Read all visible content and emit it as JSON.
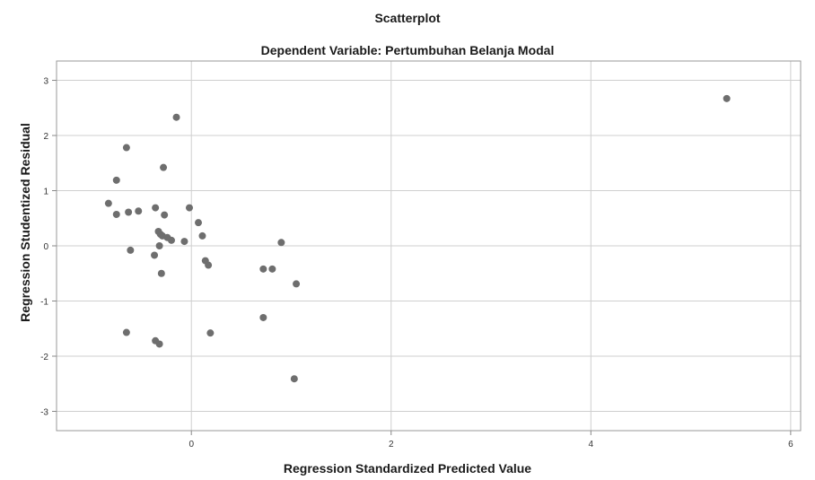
{
  "chart_data": {
    "type": "scatter",
    "title": "Scatterplot",
    "subtitle": "Dependent Variable: Pertumbuhan Belanja Modal",
    "xlabel": "Regression Standardized Predicted Value",
    "ylabel": "Regression Studentized Residual",
    "xlim": [
      -1.35,
      6.1
    ],
    "ylim": [
      -3.35,
      3.35
    ],
    "xticks": [
      0,
      2,
      4,
      6
    ],
    "yticks": [
      -3,
      -2,
      -1,
      0,
      1,
      2,
      3
    ],
    "grid": true,
    "point_color": "#6e6e6e",
    "grid_color": "#cfcfcf",
    "points": [
      [
        -0.83,
        0.77
      ],
      [
        -0.75,
        1.19
      ],
      [
        -0.75,
        0.57
      ],
      [
        -0.65,
        1.78
      ],
      [
        -0.63,
        0.61
      ],
      [
        -0.61,
        -0.08
      ],
      [
        -0.53,
        0.63
      ],
      [
        -0.65,
        -1.57
      ],
      [
        -0.36,
        0.69
      ],
      [
        -0.33,
        0.26
      ],
      [
        -0.31,
        0.21
      ],
      [
        -0.29,
        0.18
      ],
      [
        -0.27,
        0.56
      ],
      [
        -0.24,
        0.15
      ],
      [
        -0.2,
        0.1
      ],
      [
        -0.32,
        0.0
      ],
      [
        -0.37,
        -0.17
      ],
      [
        -0.3,
        -0.5
      ],
      [
        -0.28,
        1.42
      ],
      [
        -0.15,
        2.33
      ],
      [
        -0.07,
        0.08
      ],
      [
        -0.02,
        0.69
      ],
      [
        0.07,
        0.42
      ],
      [
        0.11,
        0.18
      ],
      [
        0.14,
        -0.27
      ],
      [
        0.17,
        -0.35
      ],
      [
        0.19,
        -1.58
      ],
      [
        -0.36,
        -1.72
      ],
      [
        -0.32,
        -1.78
      ],
      [
        0.72,
        -0.42
      ],
      [
        0.81,
        -0.42
      ],
      [
        0.9,
        0.06
      ],
      [
        1.05,
        -0.69
      ],
      [
        0.72,
        -1.3
      ],
      [
        1.03,
        -2.41
      ],
      [
        5.36,
        2.67
      ]
    ]
  }
}
